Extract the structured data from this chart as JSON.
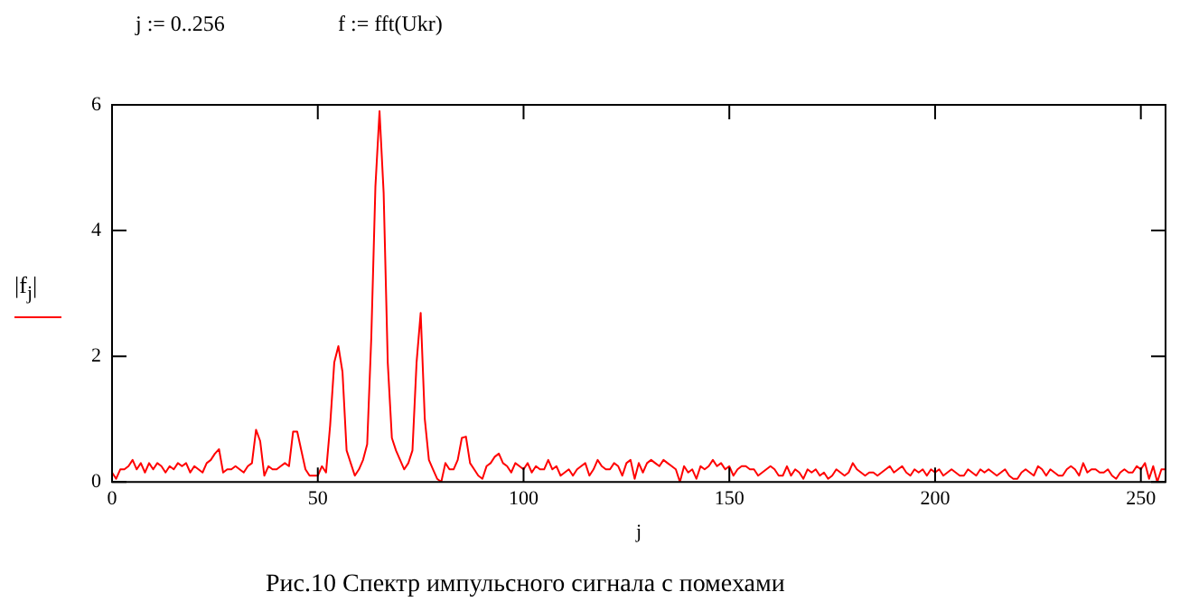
{
  "chart_data": {
    "type": "line",
    "xlabel": "j",
    "ylabel": "|f$_{j}$|",
    "annotations": [
      "j := 0..256",
      "f := fft(Ukr)",
      "Рис.10  Спектр импульсного сигнала с помехами"
    ],
    "xlim": [
      0,
      256
    ],
    "ylim": [
      0,
      6
    ],
    "xticks": [
      0,
      50,
      100,
      150,
      200,
      250
    ],
    "yticks": [
      0,
      2,
      4,
      6
    ],
    "grid": false,
    "legend": false,
    "marker": "none",
    "line_style": "solid",
    "x": [
      0,
      1,
      2,
      3,
      4,
      5,
      6,
      7,
      8,
      9,
      10,
      11,
      12,
      13,
      14,
      15,
      16,
      17,
      18,
      19,
      20,
      21,
      22,
      23,
      24,
      25,
      26,
      27,
      28,
      29,
      30,
      31,
      32,
      33,
      34,
      35,
      36,
      37,
      38,
      39,
      40,
      41,
      42,
      43,
      44,
      45,
      46,
      47,
      48,
      49,
      50,
      51,
      52,
      53,
      54,
      55,
      56,
      57,
      58,
      59,
      60,
      61,
      62,
      63,
      64,
      65,
      66,
      67,
      68,
      69,
      70,
      71,
      72,
      73,
      74,
      75,
      76,
      77,
      78,
      79,
      80,
      81,
      82,
      83,
      84,
      85,
      86,
      87,
      88,
      89,
      90,
      91,
      92,
      93,
      94,
      95,
      96,
      97,
      98,
      99,
      100,
      101,
      102,
      103,
      104,
      105,
      106,
      107,
      108,
      109,
      110,
      111,
      112,
      113,
      114,
      115,
      116,
      117,
      118,
      119,
      120,
      121,
      122,
      123,
      124,
      125,
      126,
      127,
      128,
      129,
      130,
      131,
      132,
      133,
      134,
      135,
      136,
      137,
      138,
      139,
      140,
      141,
      142,
      143,
      144,
      145,
      146,
      147,
      148,
      149,
      150,
      151,
      152,
      153,
      154,
      155,
      156,
      157,
      158,
      159,
      160,
      161,
      162,
      163,
      164,
      165,
      166,
      167,
      168,
      169,
      170,
      171,
      172,
      173,
      174,
      175,
      176,
      177,
      178,
      179,
      180,
      181,
      182,
      183,
      184,
      185,
      186,
      187,
      188,
      189,
      190,
      191,
      192,
      193,
      194,
      195,
      196,
      197,
      198,
      199,
      200,
      201,
      202,
      203,
      204,
      205,
      206,
      207,
      208,
      209,
      210,
      211,
      212,
      213,
      214,
      215,
      216,
      217,
      218,
      219,
      220,
      221,
      222,
      223,
      224,
      225,
      226,
      227,
      228,
      229,
      230,
      231,
      232,
      233,
      234,
      235,
      236,
      237,
      238,
      239,
      240,
      241,
      242,
      243,
      244,
      245,
      246,
      247,
      248,
      249,
      250,
      251,
      252,
      253,
      254,
      255,
      256
    ],
    "series": [
      {
        "color": "#ff0000",
        "values": [
          0.15,
          0.05,
          0.2,
          0.2,
          0.25,
          0.35,
          0.2,
          0.3,
          0.15,
          0.3,
          0.2,
          0.3,
          0.25,
          0.15,
          0.25,
          0.2,
          0.3,
          0.25,
          0.3,
          0.15,
          0.25,
          0.2,
          0.15,
          0.3,
          0.35,
          0.45,
          0.52,
          0.15,
          0.2,
          0.2,
          0.25,
          0.2,
          0.15,
          0.25,
          0.3,
          0.83,
          0.65,
          0.1,
          0.25,
          0.2,
          0.2,
          0.25,
          0.3,
          0.25,
          0.8,
          0.8,
          0.5,
          0.2,
          0.1,
          0.1,
          0.1,
          0.25,
          0.15,
          0.9,
          1.9,
          2.16,
          1.75,
          0.5,
          0.3,
          0.1,
          0.2,
          0.35,
          0.6,
          2.3,
          4.7,
          5.9,
          4.6,
          1.9,
          0.7,
          0.5,
          0.35,
          0.2,
          0.3,
          0.5,
          1.9,
          2.69,
          1.0,
          0.35,
          0.2,
          0.05,
          0.0,
          0.3,
          0.2,
          0.2,
          0.35,
          0.7,
          0.72,
          0.3,
          0.2,
          0.1,
          0.05,
          0.25,
          0.3,
          0.4,
          0.45,
          0.3,
          0.25,
          0.15,
          0.3,
          0.25,
          0.2,
          0.3,
          0.15,
          0.25,
          0.2,
          0.2,
          0.35,
          0.2,
          0.25,
          0.1,
          0.15,
          0.2,
          0.1,
          0.2,
          0.25,
          0.3,
          0.1,
          0.2,
          0.35,
          0.25,
          0.2,
          0.2,
          0.3,
          0.25,
          0.1,
          0.3,
          0.35,
          0.05,
          0.3,
          0.15,
          0.3,
          0.35,
          0.3,
          0.25,
          0.35,
          0.3,
          0.25,
          0.2,
          0.0,
          0.25,
          0.15,
          0.2,
          0.05,
          0.25,
          0.2,
          0.25,
          0.35,
          0.25,
          0.3,
          0.2,
          0.25,
          0.1,
          0.2,
          0.25,
          0.25,
          0.2,
          0.2,
          0.1,
          0.15,
          0.2,
          0.25,
          0.2,
          0.1,
          0.1,
          0.25,
          0.1,
          0.2,
          0.15,
          0.05,
          0.2,
          0.15,
          0.2,
          0.1,
          0.15,
          0.05,
          0.1,
          0.2,
          0.15,
          0.1,
          0.15,
          0.3,
          0.2,
          0.15,
          0.1,
          0.15,
          0.15,
          0.1,
          0.15,
          0.2,
          0.25,
          0.15,
          0.2,
          0.25,
          0.15,
          0.1,
          0.2,
          0.15,
          0.2,
          0.1,
          0.2,
          0.15,
          0.2,
          0.1,
          0.15,
          0.2,
          0.15,
          0.1,
          0.1,
          0.2,
          0.15,
          0.1,
          0.2,
          0.15,
          0.2,
          0.15,
          0.1,
          0.15,
          0.2,
          0.1,
          0.05,
          0.05,
          0.15,
          0.2,
          0.15,
          0.1,
          0.25,
          0.2,
          0.1,
          0.2,
          0.15,
          0.1,
          0.1,
          0.2,
          0.25,
          0.2,
          0.1,
          0.3,
          0.15,
          0.2,
          0.2,
          0.15,
          0.15,
          0.2,
          0.1,
          0.05,
          0.15,
          0.2,
          0.15,
          0.15,
          0.25,
          0.2,
          0.3,
          0.05,
          0.25,
          0.0,
          0.2,
          0.2
        ]
      }
    ]
  }
}
